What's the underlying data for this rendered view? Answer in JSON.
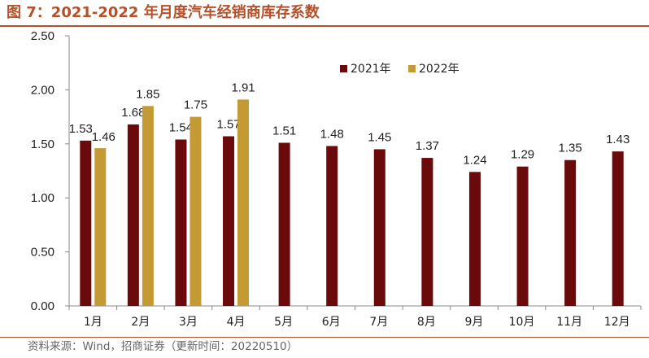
{
  "title": "图 7：2021-2022 年月度汽车经销商库存系数",
  "source": "资料来源：Wind，招商证券（更新时间：20220510）",
  "colors": {
    "title": "#b5512a",
    "series2021": "#6b0a0a",
    "series2022": "#c39a33"
  },
  "chart_data": {
    "type": "bar",
    "categories": [
      "1月",
      "2月",
      "3月",
      "4月",
      "5月",
      "6月",
      "7月",
      "8月",
      "9月",
      "10月",
      "11月",
      "12月"
    ],
    "series": [
      {
        "name": "2021年",
        "values": [
          1.53,
          1.68,
          1.54,
          1.57,
          1.51,
          1.48,
          1.45,
          1.37,
          1.24,
          1.29,
          1.35,
          1.43
        ],
        "labels": [
          "1.53",
          "1.68",
          "1.54",
          "1.57",
          "1.51",
          "1.48",
          "1.45",
          "1.37",
          "1.24",
          "1.29",
          "1.35",
          "1.43"
        ]
      },
      {
        "name": "2022年",
        "values": [
          1.46,
          1.85,
          1.75,
          1.91,
          null,
          null,
          null,
          null,
          null,
          null,
          null,
          null
        ],
        "labels": [
          "1.46",
          "1.85",
          "1.75",
          "1.91",
          null,
          null,
          null,
          null,
          null,
          null,
          null,
          null
        ]
      }
    ],
    "ylim": [
      0,
      2.5
    ],
    "yticks": [
      "0.00",
      "0.50",
      "1.00",
      "1.50",
      "2.00",
      "2.50"
    ],
    "legend": "top-right",
    "grid": false
  }
}
